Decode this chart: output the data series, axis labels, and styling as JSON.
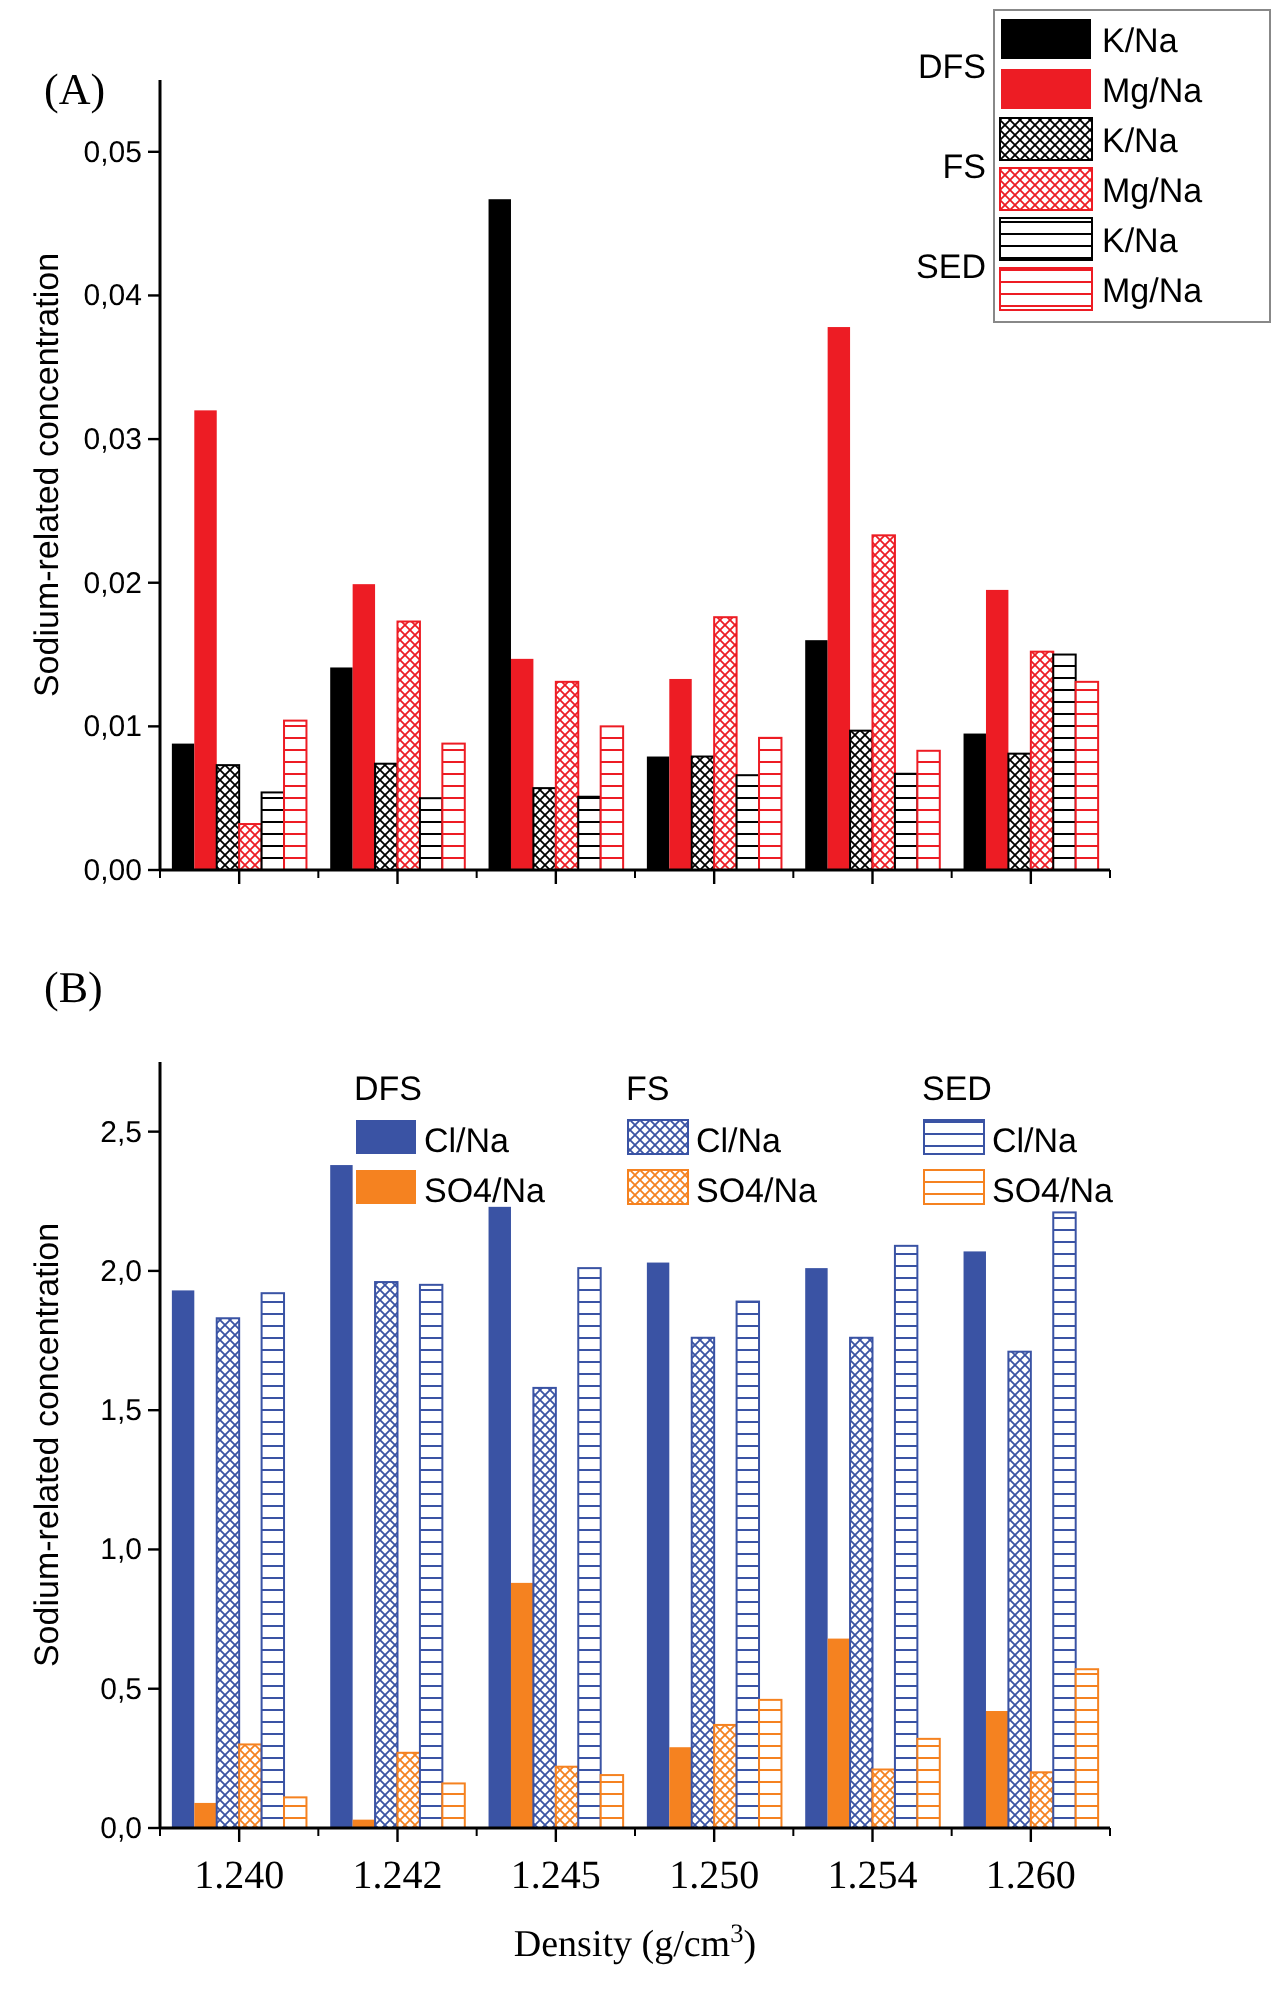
{
  "chart_data": [
    {
      "type": "bar",
      "title": "(A)",
      "ylabel": "Sodium-related concentration",
      "categories": [
        "1.240",
        "1.242",
        "1.245",
        "1.250",
        "1.254",
        "1.260"
      ],
      "ylim": [
        0,
        0.055
      ],
      "yticks": [
        {
          "value": 0,
          "label": "0,00"
        },
        {
          "value": 0.01,
          "label": "0,01"
        },
        {
          "value": 0.02,
          "label": "0,02"
        },
        {
          "value": 0.03,
          "label": "0,03"
        },
        {
          "value": 0.04,
          "label": "0,04"
        },
        {
          "value": 0.05,
          "label": "0,05"
        }
      ],
      "tick_labels": "y",
      "legend": "top right",
      "annotations": [
        "DFS",
        "FS",
        "SED"
      ],
      "series": [
        {
          "name": "K/Na",
          "color": "#000000",
          "values": [
            0.0088,
            0.0141,
            0.0467,
            0.0079,
            0.016,
            0.0095
          ]
        },
        {
          "name": "Mg/Na",
          "color": "#ed1c24",
          "values": [
            0.032,
            0.0199,
            0.0147,
            0.0133,
            0.0378,
            0.0195
          ]
        },
        {
          "name": "K/Na",
          "color": "#000000",
          "values": [
            0.0073,
            0.0074,
            0.0057,
            0.0079,
            0.0097,
            0.0081
          ]
        },
        {
          "name": "Mg/Na",
          "color": "#ed1c24",
          "values": [
            0.0032,
            0.0173,
            0.0131,
            0.0176,
            0.0233,
            0.0152
          ]
        },
        {
          "name": "K/Na",
          "color": "#000000",
          "values": [
            0.0054,
            0.005,
            0.0051,
            0.0066,
            0.0067,
            0.015
          ]
        },
        {
          "name": "Mg/Na",
          "color": "#ed1c24",
          "values": [
            0.0104,
            0.0088,
            0.01,
            0.0092,
            0.0083,
            0.0131
          ]
        }
      ]
    },
    {
      "type": "bar",
      "title": "(B)",
      "xlabel": "Density (g/cm$^{3}$)",
      "ylabel": "Sodium-related concentration",
      "categories": [
        "1.240",
        "1.242",
        "1.245",
        "1.250",
        "1.254",
        "1.260"
      ],
      "ylim": [
        0,
        2.75
      ],
      "yticks": [
        {
          "value": 0,
          "label": "0,0"
        },
        {
          "value": 0.5,
          "label": "0,5"
        },
        {
          "value": 1,
          "label": "1,0"
        },
        {
          "value": 1.5,
          "label": "1,5"
        },
        {
          "value": 2,
          "label": "2,0"
        },
        {
          "value": 2.5,
          "label": "2,5"
        }
      ],
      "legend": "top",
      "annotations": [
        "DFS",
        "FS",
        "SED"
      ],
      "series": [
        {
          "name": "Cl/Na",
          "color": "#3a53a4",
          "values": [
            1.93,
            2.38,
            2.23,
            2.03,
            2.01,
            2.07
          ]
        },
        {
          "name": "SO4/Na",
          "color": "#f58220",
          "values": [
            0.09,
            0.03,
            0.88,
            0.29,
            0.68,
            0.42
          ]
        },
        {
          "name": "Cl/Na",
          "color": "#3a53a4",
          "values": [
            1.83,
            1.96,
            1.58,
            1.76,
            1.76,
            1.71
          ]
        },
        {
          "name": "SO4/Na",
          "color": "#f58220",
          "values": [
            0.3,
            0.27,
            0.22,
            0.37,
            0.21,
            0.2
          ]
        },
        {
          "name": "Cl/Na",
          "color": "#3a53a4",
          "values": [
            1.92,
            1.95,
            2.01,
            1.89,
            2.09,
            2.21
          ]
        },
        {
          "name": "SO4/Na",
          "color": "#f58220",
          "values": [
            0.11,
            0.16,
            0.19,
            0.46,
            0.32,
            0.57
          ]
        }
      ]
    }
  ]
}
